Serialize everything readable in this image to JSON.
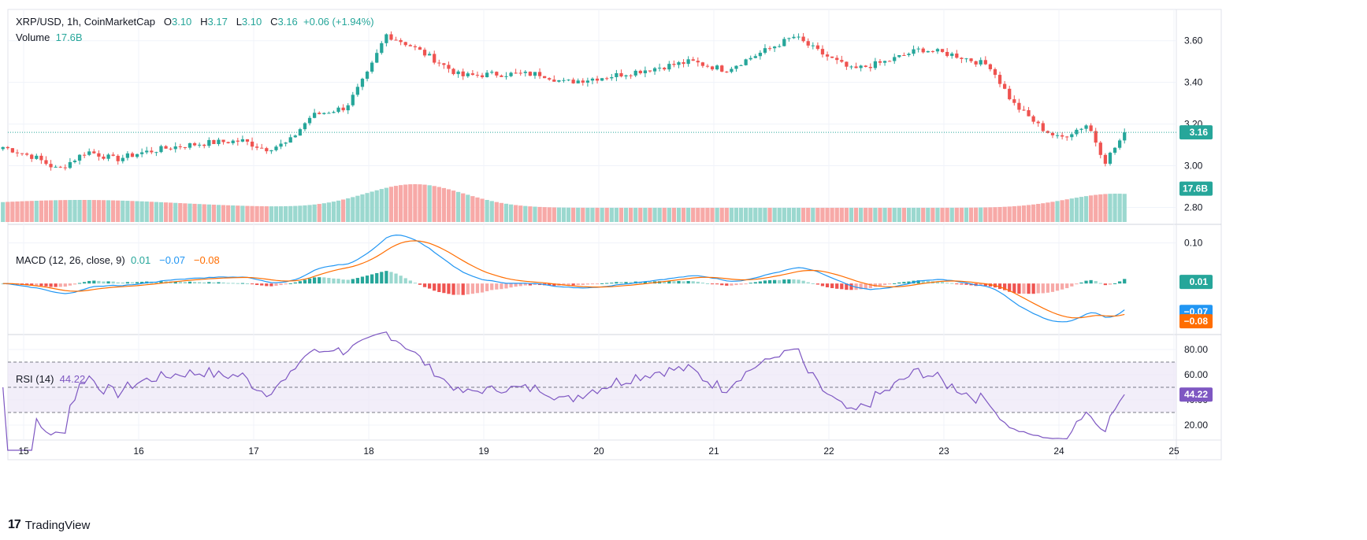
{
  "header": {
    "symbol": "XRP/USD, 1h, CoinMarketCap",
    "o_label": "O",
    "o": "3.10",
    "h_label": "H",
    "h": "3.17",
    "l_label": "L",
    "l": "3.10",
    "c_label": "C",
    "c": "3.16",
    "change": "+0.06 (+1.94%)",
    "volume_label": "Volume",
    "volume": "17.6B"
  },
  "macd_legend": {
    "label": "MACD (12, 26, close, 9)",
    "hist": "0.01",
    "macd": "−0.07",
    "signal": "−0.08"
  },
  "rsi_legend": {
    "label": "RSI (14)",
    "value": "44.22"
  },
  "badges": {
    "price": "3.16",
    "volume": "17.6B",
    "macd_hist": "0.01",
    "macd": "−0.07",
    "signal": "−0.08",
    "rsi": "44.22"
  },
  "branding": "TradingView",
  "colors": {
    "up": "#26a69a",
    "down": "#ef5350",
    "vol_up": "#9bd8cf",
    "vol_down": "#f7a9a7",
    "macd": "#2196f3",
    "signal": "#ff6d00",
    "rsi": "#7e57c2",
    "rsi_band": "#ede7f6"
  },
  "chart_data": {
    "type": "candlestick",
    "timeframe": "1h",
    "price_axis": {
      "ticks": [
        2.8,
        3.0,
        3.2,
        3.4,
        3.6
      ],
      "tick_labels": [
        "2.80",
        "3.00",
        "3.20",
        "3.40",
        "3.60"
      ],
      "range": [
        2.73,
        3.75
      ],
      "last": 3.16
    },
    "x_axis": {
      "tick_labels": [
        "15",
        "16",
        "17",
        "18",
        "19",
        "20",
        "21",
        "22",
        "23",
        "24",
        "25"
      ]
    },
    "macd_axis": {
      "ticks": [
        0.1
      ],
      "tick_labels": [
        "0.10"
      ],
      "range": [
        -0.12,
        0.14
      ]
    },
    "rsi_axis": {
      "ticks": [
        20,
        40,
        60,
        80
      ],
      "tick_labels": [
        "20.00",
        "40.00",
        "60.00",
        "80.00"
      ],
      "range": [
        10,
        90
      ],
      "band": [
        30,
        70
      ],
      "mid": 50
    },
    "candles": [
      {
        "x": 14.82,
        "close": 3.09
      },
      {
        "x": 15.1,
        "close": 3.04
      },
      {
        "x": 15.3,
        "close": 2.98
      },
      {
        "x": 15.55,
        "close": 3.07
      },
      {
        "x": 15.8,
        "close": 3.03
      },
      {
        "x": 16.0,
        "close": 3.06
      },
      {
        "x": 16.3,
        "close": 3.09
      },
      {
        "x": 16.6,
        "close": 3.11
      },
      {
        "x": 16.9,
        "close": 3.12
      },
      {
        "x": 17.1,
        "close": 3.08
      },
      {
        "x": 17.3,
        "close": 3.11
      },
      {
        "x": 17.5,
        "close": 3.24
      },
      {
        "x": 17.8,
        "close": 3.28
      },
      {
        "x": 18.0,
        "close": 3.45
      },
      {
        "x": 18.15,
        "close": 3.63
      },
      {
        "x": 18.35,
        "close": 3.58
      },
      {
        "x": 18.6,
        "close": 3.5
      },
      {
        "x": 18.8,
        "close": 3.43
      },
      {
        "x": 19.1,
        "close": 3.44
      },
      {
        "x": 19.5,
        "close": 3.44
      },
      {
        "x": 19.7,
        "close": 3.4
      },
      {
        "x": 20.1,
        "close": 3.43
      },
      {
        "x": 20.5,
        "close": 3.47
      },
      {
        "x": 20.8,
        "close": 3.5
      },
      {
        "x": 21.1,
        "close": 3.46
      },
      {
        "x": 21.4,
        "close": 3.54
      },
      {
        "x": 21.7,
        "close": 3.62
      },
      {
        "x": 21.9,
        "close": 3.55
      },
      {
        "x": 22.2,
        "close": 3.46
      },
      {
        "x": 22.5,
        "close": 3.5
      },
      {
        "x": 22.8,
        "close": 3.56
      },
      {
        "x": 23.1,
        "close": 3.53
      },
      {
        "x": 23.4,
        "close": 3.48
      },
      {
        "x": 23.6,
        "close": 3.3
      },
      {
        "x": 23.85,
        "close": 3.18
      },
      {
        "x": 24.0,
        "close": 3.13
      },
      {
        "x": 24.25,
        "close": 3.2
      },
      {
        "x": 24.4,
        "close": 3.02
      },
      {
        "x": 24.58,
        "close": 3.16
      }
    ]
  }
}
